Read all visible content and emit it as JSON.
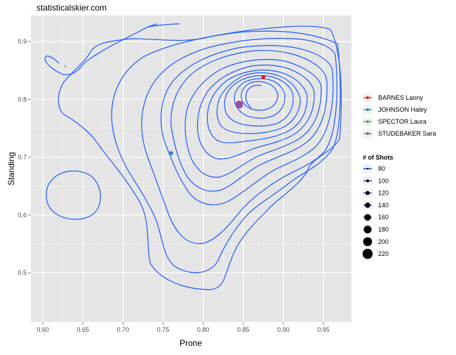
{
  "watermark": "statisticalskier.com",
  "chart_data": {
    "type": "scatter",
    "title": "",
    "xlabel": "Prone",
    "ylabel": "Standing",
    "xlim": [
      0.585,
      0.985
    ],
    "ylim": [
      0.415,
      0.945
    ],
    "x_ticks": [
      0.6,
      0.65,
      0.7,
      0.75,
      0.8,
      0.85,
      0.9,
      0.95
    ],
    "x_tick_labels": [
      "0.60",
      "0.65",
      "0.70",
      "0.75",
      "0.80",
      "0.85",
      "0.90",
      "0.95"
    ],
    "y_ticks": [
      0.5,
      0.6,
      0.7,
      0.8,
      0.9
    ],
    "y_tick_labels": [
      "0.5",
      "0.6",
      "0.7",
      "0.8",
      "0.9"
    ],
    "grid": true,
    "background": "#e5e5e5",
    "contour_color": "#1f5bff",
    "series": [
      {
        "name": "BARNES Lanny",
        "color": "#e41a1c",
        "x": 0.875,
        "y": 0.838,
        "shots": 120
      },
      {
        "name": "JOHNSON Haley",
        "color": "#377eb8",
        "x": 0.76,
        "y": 0.707,
        "shots": 120
      },
      {
        "name": "SPECTOR Laura",
        "color": "#4daf4a",
        "x": 0.628,
        "y": 0.857,
        "shots": 80
      },
      {
        "name": "STUDEBAKER Sara",
        "color": "#984ea3",
        "x": 0.845,
        "y": 0.791,
        "shots": 180
      }
    ],
    "size_legend": {
      "title": "# of Shots",
      "values": [
        80,
        100,
        120,
        140,
        160,
        180,
        200,
        220
      ],
      "labels": [
        "80",
        "100",
        "120",
        "140",
        "160",
        "180",
        "200",
        "220"
      ]
    },
    "legend_position": "right"
  }
}
